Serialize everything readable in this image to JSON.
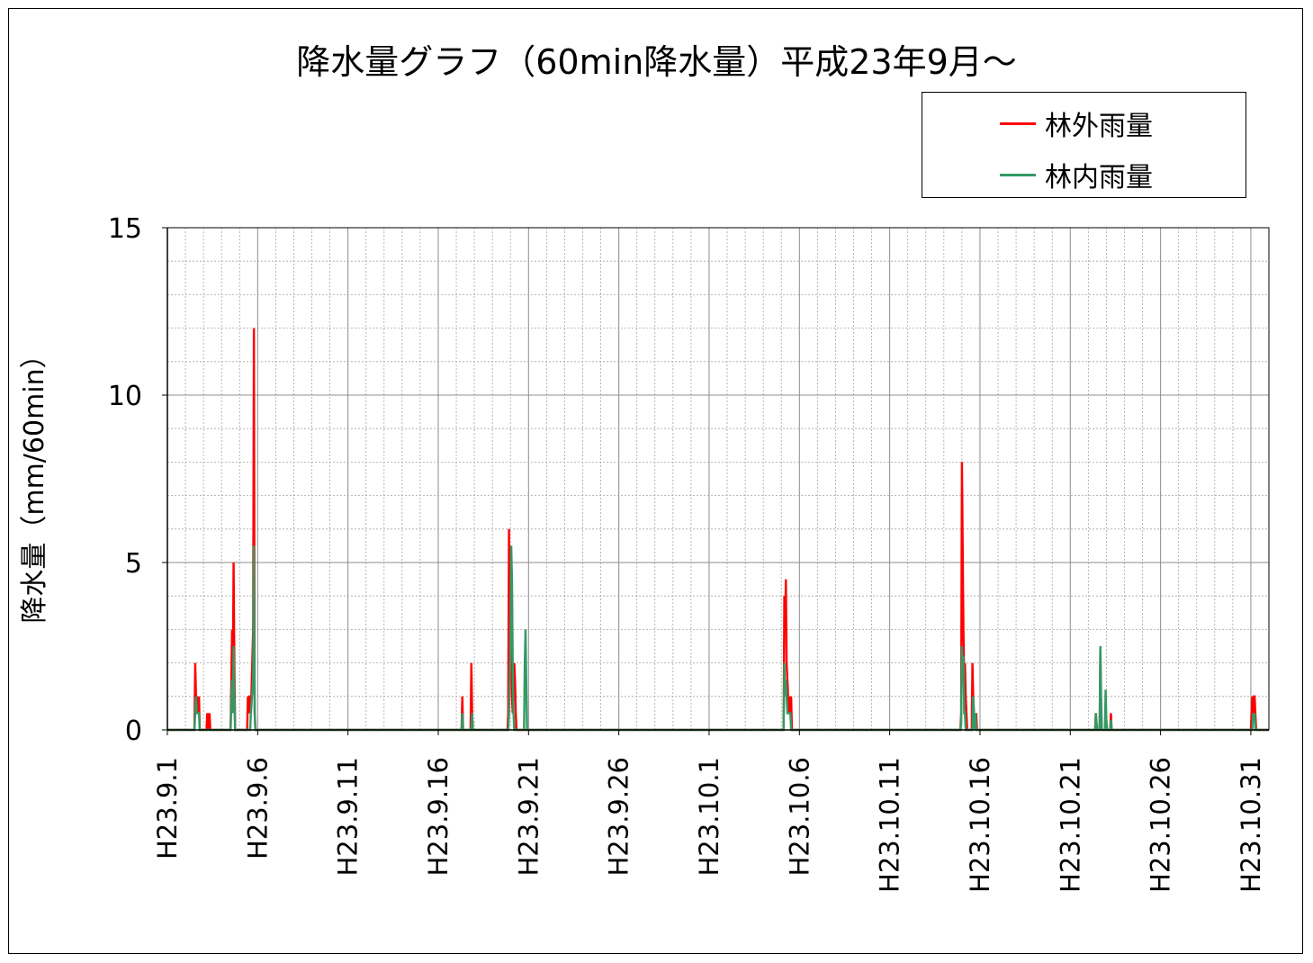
{
  "chart_data": {
    "type": "line",
    "title": "降水量グラフ（60min降水量）平成23年9月～",
    "ylabel": "降水量（mm/60min）",
    "xlabel": "",
    "ylim": [
      0,
      15
    ],
    "yticks": [
      0,
      5,
      10,
      15
    ],
    "xlim": [
      "2011-09-01",
      "2011-11-01"
    ],
    "xtick_labels": [
      "H23.9.1",
      "H23.9.6",
      "H23.9.11",
      "H23.9.16",
      "H23.9.21",
      "H23.9.26",
      "H23.10.1",
      "H23.10.6",
      "H23.10.11",
      "H23.10.16",
      "H23.10.21",
      "H23.10.26",
      "H23.10.31"
    ],
    "xtick_dates": [
      "2011-09-01",
      "2011-09-06",
      "2011-09-11",
      "2011-09-16",
      "2011-09-21",
      "2011-09-26",
      "2011-10-01",
      "2011-10-06",
      "2011-10-11",
      "2011-10-16",
      "2011-10-21",
      "2011-10-26",
      "2011-10-31"
    ],
    "grid": true,
    "legend_position": "top-right",
    "series": [
      {
        "name": "林外雨量",
        "color": "#ff0000",
        "points": [
          [
            "2011-09-02 12:00",
            0
          ],
          [
            "2011-09-02 13:00",
            2.0
          ],
          [
            "2011-09-02 14:00",
            1.0
          ],
          [
            "2011-09-02 15:00",
            0.5
          ],
          [
            "2011-09-02 16:00",
            1.0
          ],
          [
            "2011-09-02 17:00",
            0.5
          ],
          [
            "2011-09-02 18:00",
            1.0
          ],
          [
            "2011-09-02 19:00",
            0
          ],
          [
            "2011-09-03 04:00",
            0
          ],
          [
            "2011-09-03 05:00",
            0.5
          ],
          [
            "2011-09-03 06:00",
            0
          ],
          [
            "2011-09-03 08:00",
            0.5
          ],
          [
            "2011-09-03 09:00",
            0
          ],
          [
            "2011-09-04 12:00",
            0
          ],
          [
            "2011-09-04 13:00",
            1.5
          ],
          [
            "2011-09-04 14:00",
            3.0
          ],
          [
            "2011-09-04 15:00",
            1.5
          ],
          [
            "2011-09-04 16:00",
            5.0
          ],
          [
            "2011-09-04 17:00",
            2.0
          ],
          [
            "2011-09-04 18:00",
            0
          ],
          [
            "2011-09-05 10:00",
            0
          ],
          [
            "2011-09-05 11:00",
            1.0
          ],
          [
            "2011-09-05 12:00",
            0.5
          ],
          [
            "2011-09-05 13:00",
            1.0
          ],
          [
            "2011-09-05 14:00",
            1.0
          ],
          [
            "2011-09-05 15:00",
            0.5
          ],
          [
            "2011-09-05 18:00",
            3.0
          ],
          [
            "2011-09-05 19:00",
            12.0
          ],
          [
            "2011-09-05 20:00",
            0.5
          ],
          [
            "2011-09-05 21:00",
            0
          ],
          [
            "2011-09-17 07:00",
            0
          ],
          [
            "2011-09-17 08:00",
            1.0
          ],
          [
            "2011-09-17 09:00",
            0
          ],
          [
            "2011-09-17 19:00",
            0
          ],
          [
            "2011-09-17 20:00",
            2.0
          ],
          [
            "2011-09-17 21:00",
            0.5
          ],
          [
            "2011-09-17 22:00",
            0
          ],
          [
            "2011-09-19 20:00",
            0
          ],
          [
            "2011-09-19 21:00",
            0.5
          ],
          [
            "2011-09-19 22:00",
            6.0
          ],
          [
            "2011-09-19 23:00",
            3.5
          ],
          [
            "2011-09-20 00:00",
            3.0
          ],
          [
            "2011-09-20 01:00",
            3.5
          ],
          [
            "2011-09-20 02:00",
            1.0
          ],
          [
            "2011-09-20 03:00",
            0.5
          ],
          [
            "2011-09-20 05:00",
            2.0
          ],
          [
            "2011-09-20 06:00",
            1.5
          ],
          [
            "2011-09-20 07:00",
            0.5
          ],
          [
            "2011-09-20 08:00",
            0
          ],
          [
            "2011-10-05 03:00",
            0
          ],
          [
            "2011-10-05 04:00",
            4.0
          ],
          [
            "2011-10-05 05:00",
            3.0
          ],
          [
            "2011-10-05 06:00",
            4.5
          ],
          [
            "2011-10-05 07:00",
            2.0
          ],
          [
            "2011-10-05 08:00",
            1.5
          ],
          [
            "2011-10-05 09:00",
            1.0
          ],
          [
            "2011-10-05 10:00",
            0.5
          ],
          [
            "2011-10-05 11:00",
            1.0
          ],
          [
            "2011-10-05 12:00",
            0.5
          ],
          [
            "2011-10-05 13:00",
            1.0
          ],
          [
            "2011-10-05 14:00",
            0
          ],
          [
            "2011-10-14 22:00",
            0
          ],
          [
            "2011-10-14 23:00",
            0.5
          ],
          [
            "2011-10-15 00:00",
            8.0
          ],
          [
            "2011-10-15 01:00",
            5.5
          ],
          [
            "2011-10-15 02:00",
            3.0
          ],
          [
            "2011-10-15 03:00",
            1.5
          ],
          [
            "2011-10-15 04:00",
            2.0
          ],
          [
            "2011-10-15 05:00",
            1.0
          ],
          [
            "2011-10-15 06:00",
            0.5
          ],
          [
            "2011-10-15 07:00",
            0
          ],
          [
            "2011-10-15 13:00",
            0
          ],
          [
            "2011-10-15 14:00",
            2.0
          ],
          [
            "2011-10-15 15:00",
            1.0
          ],
          [
            "2011-10-15 16:00",
            0.5
          ],
          [
            "2011-10-15 17:00",
            0
          ],
          [
            "2011-10-15 19:00",
            0.5
          ],
          [
            "2011-10-15 20:00",
            0
          ],
          [
            "2011-10-22 09:00",
            0
          ],
          [
            "2011-10-22 10:00",
            0.5
          ],
          [
            "2011-10-22 11:00",
            0
          ],
          [
            "2011-10-22 15:00",
            0
          ],
          [
            "2011-10-22 16:00",
            2.5
          ],
          [
            "2011-10-22 17:00",
            0.5
          ],
          [
            "2011-10-22 18:00",
            0
          ],
          [
            "2011-10-23 05:00",
            0
          ],
          [
            "2011-10-23 06:00",
            0.5
          ],
          [
            "2011-10-23 07:00",
            0
          ],
          [
            "2011-10-31 00:00",
            0
          ],
          [
            "2011-10-31 01:00",
            0.5
          ],
          [
            "2011-10-31 02:00",
            1.0
          ],
          [
            "2011-10-31 03:00",
            0.5
          ],
          [
            "2011-10-31 04:00",
            1.0
          ],
          [
            "2011-10-31 05:00",
            1.0
          ],
          [
            "2011-10-31 06:00",
            0.5
          ],
          [
            "2011-10-31 07:00",
            0
          ]
        ]
      },
      {
        "name": "林内雨量",
        "color": "#339966",
        "points": [
          [
            "2011-09-02 12:00",
            0
          ],
          [
            "2011-09-02 14:00",
            1.0
          ],
          [
            "2011-09-02 15:00",
            0.5
          ],
          [
            "2011-09-02 16:00",
            0.5
          ],
          [
            "2011-09-02 17:00",
            0.5
          ],
          [
            "2011-09-02 18:00",
            0.5
          ],
          [
            "2011-09-02 19:00",
            0
          ],
          [
            "2011-09-04 12:00",
            0
          ],
          [
            "2011-09-04 14:00",
            1.5
          ],
          [
            "2011-09-04 15:00",
            0.5
          ],
          [
            "2011-09-04 16:00",
            2.5
          ],
          [
            "2011-09-04 17:00",
            1.0
          ],
          [
            "2011-09-04 18:00",
            0
          ],
          [
            "2011-09-05 14:00",
            0
          ],
          [
            "2011-09-05 15:00",
            0.5
          ],
          [
            "2011-09-05 18:00",
            1.5
          ],
          [
            "2011-09-05 19:00",
            5.5
          ],
          [
            "2011-09-05 20:00",
            0.5
          ],
          [
            "2011-09-05 21:00",
            0
          ],
          [
            "2011-09-17 07:00",
            0
          ],
          [
            "2011-09-17 08:00",
            0.5
          ],
          [
            "2011-09-17 09:00",
            0
          ],
          [
            "2011-09-17 20:00",
            0
          ],
          [
            "2011-09-17 21:00",
            0.5
          ],
          [
            "2011-09-17 22:00",
            0
          ],
          [
            "2011-09-19 21:00",
            0
          ],
          [
            "2011-09-19 22:00",
            0.5
          ],
          [
            "2011-09-19 23:00",
            1.5
          ],
          [
            "2011-09-20 00:00",
            2.5
          ],
          [
            "2011-09-20 01:00",
            5.5
          ],
          [
            "2011-09-20 02:00",
            4.5
          ],
          [
            "2011-09-20 03:00",
            2.0
          ],
          [
            "2011-09-20 04:00",
            0.5
          ],
          [
            "2011-09-20 05:00",
            0
          ],
          [
            "2011-09-20 18:00",
            0
          ],
          [
            "2011-09-20 19:00",
            2.0
          ],
          [
            "2011-09-20 20:00",
            3.0
          ],
          [
            "2011-09-20 21:00",
            1.5
          ],
          [
            "2011-09-20 22:00",
            0
          ],
          [
            "2011-10-05 03:00",
            0
          ],
          [
            "2011-10-05 04:00",
            2.0
          ],
          [
            "2011-10-05 05:00",
            1.0
          ],
          [
            "2011-10-05 06:00",
            1.5
          ],
          [
            "2011-10-05 07:00",
            1.0
          ],
          [
            "2011-10-05 08:00",
            0.5
          ],
          [
            "2011-10-05 10:00",
            0.5
          ],
          [
            "2011-10-05 12:00",
            0.5
          ],
          [
            "2011-10-05 13:00",
            0
          ],
          [
            "2011-10-14 22:00",
            0
          ],
          [
            "2011-10-14 23:00",
            0.2
          ],
          [
            "2011-10-15 00:00",
            2.5
          ],
          [
            "2011-10-15 01:00",
            2.0
          ],
          [
            "2011-10-15 02:00",
            2.2
          ],
          [
            "2011-10-15 03:00",
            0.5
          ],
          [
            "2011-10-15 04:00",
            0.5
          ],
          [
            "2011-10-15 05:00",
            0
          ],
          [
            "2011-10-15 14:00",
            0
          ],
          [
            "2011-10-15 15:00",
            1.0
          ],
          [
            "2011-10-15 16:00",
            0.5
          ],
          [
            "2011-10-15 17:00",
            0
          ],
          [
            "2011-10-15 18:00",
            0.5
          ],
          [
            "2011-10-15 19:00",
            0
          ],
          [
            "2011-10-22 09:00",
            0
          ],
          [
            "2011-10-22 10:00",
            0.5
          ],
          [
            "2011-10-22 11:00",
            0.2
          ],
          [
            "2011-10-22 12:00",
            0
          ],
          [
            "2011-10-22 15:00",
            0
          ],
          [
            "2011-10-22 16:00",
            2.5
          ],
          [
            "2011-10-22 17:00",
            1.0
          ],
          [
            "2011-10-22 18:00",
            0
          ],
          [
            "2011-10-22 22:00",
            0
          ],
          [
            "2011-10-22 23:00",
            1.2
          ],
          [
            "2011-10-23 00:00",
            0.3
          ],
          [
            "2011-10-23 01:00",
            0
          ],
          [
            "2011-10-23 05:00",
            0
          ],
          [
            "2011-10-23 06:00",
            0.3
          ],
          [
            "2011-10-23 07:00",
            0
          ],
          [
            "2011-10-31 02:00",
            0
          ],
          [
            "2011-10-31 03:00",
            0.5
          ],
          [
            "2011-10-31 04:00",
            0.3
          ],
          [
            "2011-10-31 05:00",
            0.5
          ],
          [
            "2011-10-31 06:00",
            0
          ]
        ]
      }
    ]
  }
}
